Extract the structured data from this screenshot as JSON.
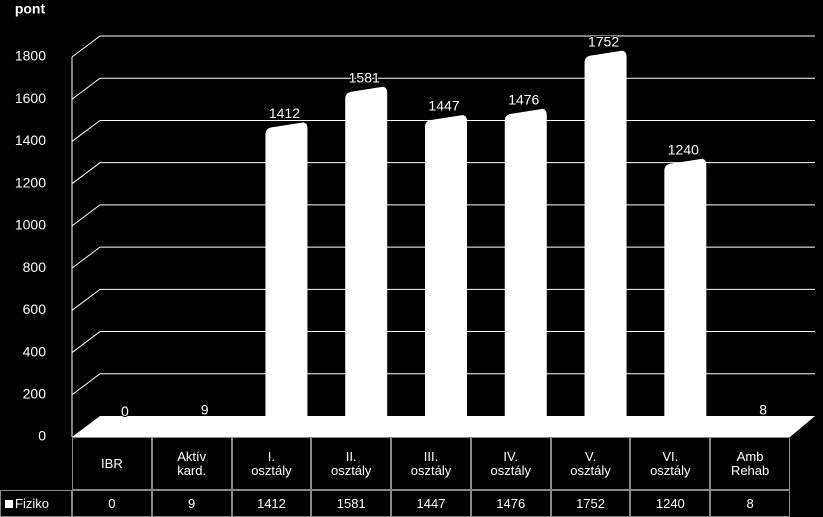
{
  "chart_data": {
    "type": "bar",
    "y_label": "pont",
    "categories": [
      "IBR",
      "Aktív\nkard.",
      "I.\nosztály",
      "II.\nosztály",
      "III.\nosztály",
      "IV.\nosztály",
      "V.\nosztály",
      "VI.\nosztály",
      "Amb\nRehab"
    ],
    "series": [
      {
        "name": "Fiziko",
        "color": "#ffffff",
        "values": [
          0,
          9,
          1412,
          1581,
          1447,
          1476,
          1752,
          1240,
          8
        ]
      }
    ],
    "ylim": [
      0,
      1800
    ],
    "yticks": [
      0,
      200,
      400,
      600,
      800,
      1000,
      1200,
      1400,
      1600,
      1800
    ],
    "grid": true
  }
}
